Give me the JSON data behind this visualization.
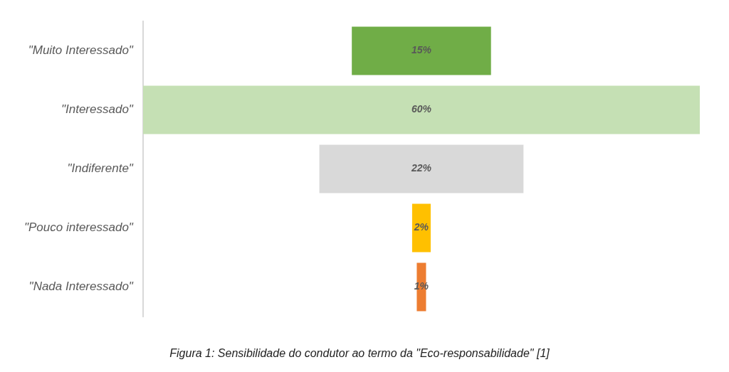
{
  "chart_data": {
    "type": "other",
    "categories": [
      "\"Muito Interessado\"",
      "\"Interessado\"",
      "\"Indiferente\"",
      "\"Pouco interessado\"",
      "\"Nada Interessado\""
    ],
    "values": [
      15,
      60,
      22,
      2,
      1
    ],
    "colors": [
      "#70ad47",
      "#c5e0b4",
      "#d9d9d9",
      "#ffc000",
      "#ed7d31"
    ],
    "value_labels": [
      "15%",
      "60%",
      "22%",
      "2%",
      "1%"
    ],
    "annotations": [
      "Figura 1: Sensibilidade do condutor ao termo da \"Eco-responsabilidade\" [1]"
    ]
  }
}
